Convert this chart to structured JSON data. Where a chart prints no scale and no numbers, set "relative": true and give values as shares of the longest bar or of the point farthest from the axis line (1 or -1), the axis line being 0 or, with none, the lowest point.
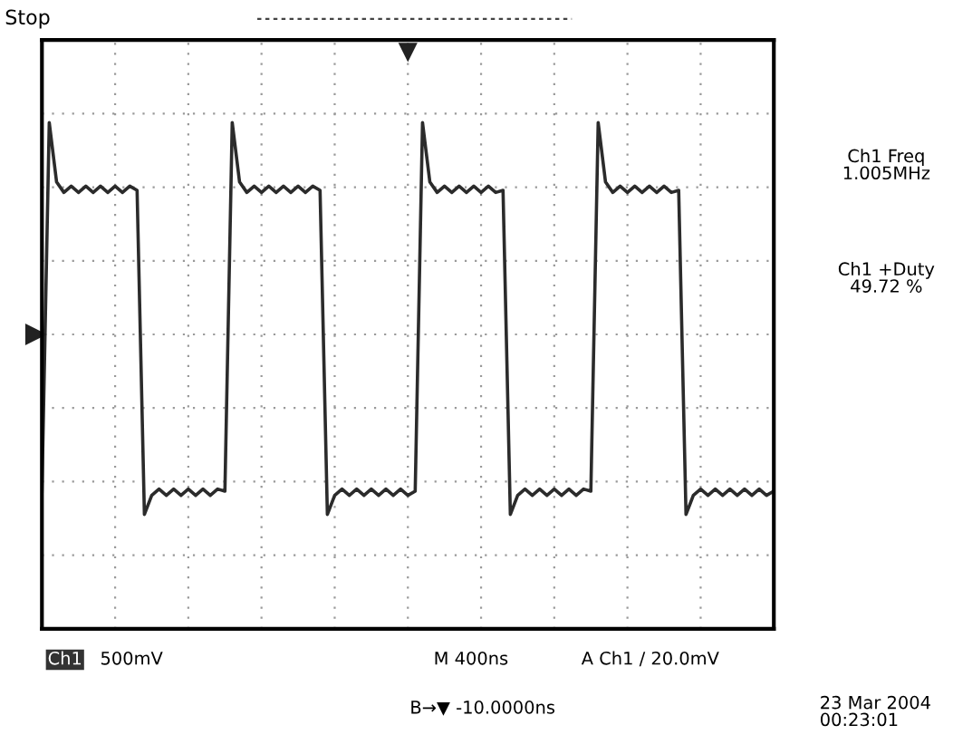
{
  "chart_data": {
    "type": "line",
    "relative": true,
    "color": "#2b2b2b",
    "grid": true,
    "line_style": "solid",
    "marker": "none",
    "categories": [
      null,
      null,
      null,
      null,
      null,
      null,
      null,
      null,
      null,
      null,
      null,
      null,
      null,
      null,
      null,
      null,
      null,
      null,
      null,
      null,
      null,
      null,
      null,
      null,
      null,
      null,
      null,
      null,
      null,
      null,
      null,
      null,
      null,
      null,
      null,
      null,
      null,
      null,
      null,
      null,
      null,
      null,
      null,
      null,
      null,
      null,
      null,
      null,
      null,
      null,
      null,
      null,
      null,
      null,
      null,
      null,
      null,
      null,
      null,
      null,
      null,
      null,
      null,
      null,
      null,
      null,
      null,
      null,
      null,
      null,
      null,
      null,
      null,
      null,
      null,
      null,
      null,
      null,
      null,
      null,
      null,
      null,
      null,
      null,
      null,
      null,
      null,
      null,
      null,
      null,
      null,
      null,
      null,
      null,
      null,
      null,
      null,
      null,
      null,
      null,
      null
    ],
    "values": [
      -0.74,
      1.0,
      0.72,
      0.67,
      0.7,
      0.67,
      0.7,
      0.67,
      0.7,
      0.67,
      0.7,
      0.67,
      0.7,
      0.68,
      -0.85,
      -0.76,
      -0.73,
      -0.76,
      -0.73,
      -0.76,
      -0.73,
      -0.76,
      -0.73,
      -0.76,
      -0.73,
      -0.74,
      1.0,
      0.72,
      0.67,
      0.7,
      0.67,
      0.7,
      0.67,
      0.7,
      0.67,
      0.7,
      0.67,
      0.7,
      0.68,
      -0.85,
      -0.76,
      -0.73,
      -0.76,
      -0.73,
      -0.76,
      -0.73,
      -0.76,
      -0.73,
      -0.76,
      -0.73,
      -0.76,
      -0.74,
      1.0,
      0.72,
      0.67,
      0.7,
      0.67,
      0.7,
      0.67,
      0.7,
      0.67,
      0.7,
      0.67,
      0.68,
      -0.85,
      -0.76,
      -0.73,
      -0.76,
      -0.73,
      -0.76,
      -0.73,
      -0.76,
      -0.73,
      -0.76,
      -0.73,
      -0.74,
      1.0,
      0.72,
      0.67,
      0.7,
      0.67,
      0.7,
      0.67,
      0.7,
      0.67,
      0.7,
      0.67,
      0.68,
      -0.85,
      -0.76,
      -0.73,
      -0.76,
      -0.73,
      -0.76,
      -0.73,
      -0.76,
      -0.73,
      -0.76,
      -0.73,
      -0.76,
      -0.74
    ],
    "annotations": [
      "Stop",
      "Ch1 Freq\n1.005MHz",
      "Ch1 +Duty\n49.72 %",
      "Ch1",
      "500mV",
      "M 400ns",
      "A Ch1 / 20.0mV",
      "B→▼ -10.0000ns",
      "23 Mar 2004\n00:23:01"
    ]
  }
}
